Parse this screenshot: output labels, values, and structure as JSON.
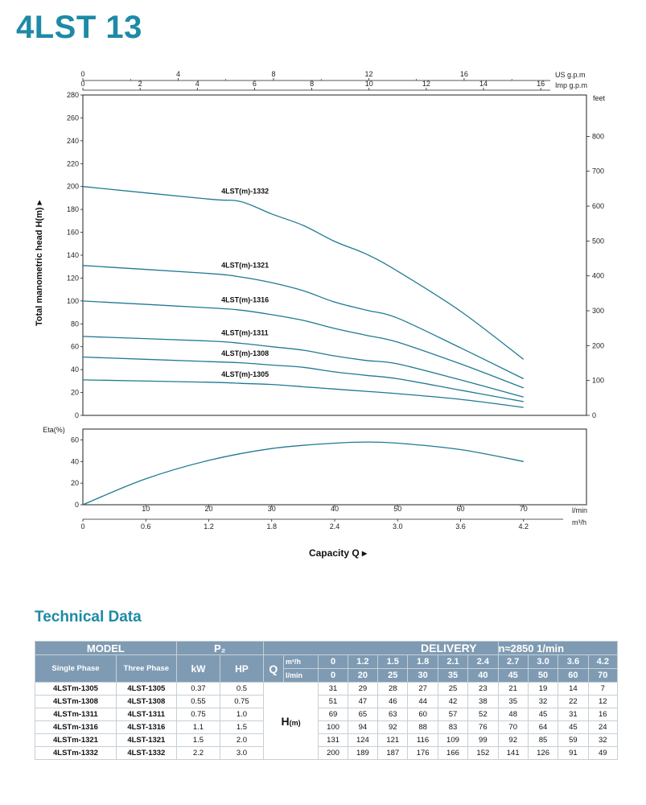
{
  "page": {
    "title": "4LST 13",
    "section_title": "Technical Data"
  },
  "chart_data": [
    {
      "type": "line",
      "title": "",
      "ylabel": "Total manometric head H(m)",
      "ylim": [
        0,
        280
      ],
      "yticks": [
        0,
        20,
        40,
        60,
        80,
        100,
        120,
        140,
        160,
        180,
        200,
        220,
        240,
        260,
        280
      ],
      "y2label": "feet",
      "y2ticks": [
        0,
        100,
        200,
        300,
        400,
        500,
        600,
        700,
        800
      ],
      "top_axes": [
        {
          "unit": "US g.p.m",
          "ticks": [
            0,
            4,
            8,
            12,
            16
          ]
        },
        {
          "unit": "Imp g.p.m",
          "ticks": [
            0,
            2,
            4,
            6,
            8,
            10,
            12,
            14,
            16
          ]
        }
      ],
      "x_unit": "l/min",
      "xlim": [
        0,
        80
      ],
      "x": [
        0,
        20,
        25,
        30,
        35,
        40,
        45,
        50,
        60,
        70
      ],
      "series": [
        {
          "name": "4LST(m)-1305",
          "values": [
            31,
            29,
            28,
            27,
            25,
            23,
            21,
            19,
            14,
            7
          ]
        },
        {
          "name": "4LST(m)-1308",
          "values": [
            51,
            47,
            46,
            44,
            42,
            38,
            35,
            32,
            22,
            12
          ]
        },
        {
          "name": "4LST(m)-1311",
          "values": [
            69,
            65,
            63,
            60,
            57,
            52,
            48,
            45,
            31,
            16
          ]
        },
        {
          "name": "4LST(m)-1316",
          "values": [
            100,
            94,
            92,
            88,
            83,
            76,
            70,
            64,
            45,
            24
          ]
        },
        {
          "name": "4LST(m)-1321",
          "values": [
            131,
            124,
            121,
            116,
            109,
            99,
            92,
            85,
            59,
            32
          ]
        },
        {
          "name": "4LST(m)-1332",
          "values": [
            200,
            189,
            187,
            176,
            166,
            152,
            141,
            126,
            91,
            49
          ]
        }
      ],
      "line_color": "#1f7a92",
      "grid": false
    },
    {
      "type": "line",
      "title": "",
      "ylabel": "Eta(%)",
      "ylim": [
        0,
        70
      ],
      "yticks": [
        0,
        20,
        40,
        60
      ],
      "xlim": [
        0,
        80
      ],
      "xticks": [
        10,
        20,
        30,
        40,
        50,
        60,
        70
      ],
      "x_unit": "l/min",
      "m3h_ticks": [
        "0",
        "0.6",
        "1.2",
        "1.8",
        "2.4",
        "3.0",
        "3.6",
        "4.2"
      ],
      "m3h_unit": "m³/h",
      "xlabel": "Capacity Q",
      "series": [
        {
          "x": [
            0,
            10,
            20,
            30,
            40,
            45,
            50,
            60,
            70
          ],
          "values": [
            0,
            24,
            41,
            52,
            57,
            58,
            57,
            51,
            40
          ]
        }
      ],
      "line_color": "#1f7a92",
      "grid": false
    }
  ],
  "table": {
    "header": {
      "model": "MODEL",
      "p2": "P₂",
      "delivery": "DELIVERY",
      "speed": "n≈2850 1/min",
      "single_phase": "Single Phase",
      "three_phase": "Three Phase",
      "kw": "kW",
      "hp": "HP",
      "q": "Q",
      "q_unit_m3h": "m³/h",
      "q_unit_lmin": "l/min",
      "h_label": "H",
      "h_unit": "(m)"
    },
    "m3h": [
      "0",
      "1.2",
      "1.5",
      "1.8",
      "2.1",
      "2.4",
      "2.7",
      "3.0",
      "3.6",
      "4.2"
    ],
    "lmin": [
      "0",
      "20",
      "25",
      "30",
      "35",
      "40",
      "45",
      "50",
      "60",
      "70"
    ],
    "rows": [
      {
        "single": "4LSTm-1305",
        "three": "4LST-1305",
        "kw": "0.37",
        "hp": "0.5",
        "h": [
          "31",
          "29",
          "28",
          "27",
          "25",
          "23",
          "21",
          "19",
          "14",
          "7"
        ]
      },
      {
        "single": "4LSTm-1308",
        "three": "4LST-1308",
        "kw": "0.55",
        "hp": "0.75",
        "h": [
          "51",
          "47",
          "46",
          "44",
          "42",
          "38",
          "35",
          "32",
          "22",
          "12"
        ]
      },
      {
        "single": "4LSTm-1311",
        "three": "4LST-1311",
        "kw": "0.75",
        "hp": "1.0",
        "h": [
          "69",
          "65",
          "63",
          "60",
          "57",
          "52",
          "48",
          "45",
          "31",
          "16"
        ]
      },
      {
        "single": "4LSTm-1316",
        "three": "4LST-1316",
        "kw": "1.1",
        "hp": "1.5",
        "h": [
          "100",
          "94",
          "92",
          "88",
          "83",
          "76",
          "70",
          "64",
          "45",
          "24"
        ]
      },
      {
        "single": "4LSTm-1321",
        "three": "4LST-1321",
        "kw": "1.5",
        "hp": "2.0",
        "h": [
          "131",
          "124",
          "121",
          "116",
          "109",
          "99",
          "92",
          "85",
          "59",
          "32"
        ]
      },
      {
        "single": "4LSTm-1332",
        "three": "4LST-1332",
        "kw": "2.2",
        "hp": "3.0",
        "h": [
          "200",
          "189",
          "187",
          "176",
          "166",
          "152",
          "141",
          "126",
          "91",
          "49"
        ]
      }
    ],
    "header_color": "#7f9bb3"
  }
}
